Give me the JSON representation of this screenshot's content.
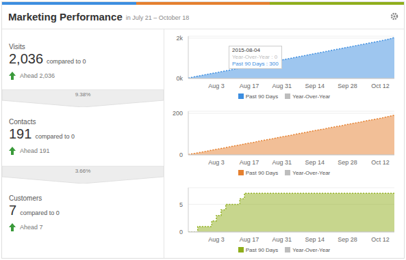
{
  "header": {
    "title": "Marketing Performance",
    "subtitle": "in July 21 – October 18"
  },
  "panels": [
    {
      "label": "Visits",
      "value": "2,036",
      "compared": "compared to 0",
      "ahead": "Ahead 2,036",
      "conversion": "9.38%"
    },
    {
      "label": "Contacts",
      "value": "191",
      "compared": "compared to 0",
      "ahead": "Ahead 191",
      "conversion": "3.66%"
    },
    {
      "label": "Customers",
      "value": "7",
      "compared": "compared to 0",
      "ahead": "Ahead 7"
    }
  ],
  "chart_data": [
    {
      "type": "area",
      "grid": true,
      "legend": "bottom",
      "categories": [
        null,
        null,
        null,
        null,
        null,
        null,
        "Aug 3",
        null,
        null,
        null,
        null,
        null,
        null,
        "Aug 17",
        null,
        null,
        null,
        null,
        null,
        null,
        "Aug 31",
        null,
        null,
        null,
        null,
        null,
        null,
        "Sep 14",
        null,
        null,
        null,
        null,
        null,
        null,
        "Sep 28",
        null,
        null,
        null,
        null,
        null,
        null,
        "Oct 12",
        null,
        null,
        null
      ],
      "ylim": [
        0,
        2100
      ],
      "yticks": [
        {
          "value": 0,
          "label": "0k"
        },
        {
          "value": 2000,
          "label": "2k"
        }
      ],
      "tooltip": {
        "title": "2015-08-04",
        "rows": [
          "Year-Over-Year : 0",
          "Past 90 Days : 300"
        ]
      },
      "series": [
        {
          "name": "Past 90 Days",
          "color": "#3d8ee0",
          "values": [
            25,
            70,
            115,
            160,
            205,
            250,
            290,
            335,
            380,
            425,
            470,
            515,
            560,
            605,
            650,
            695,
            740,
            785,
            830,
            875,
            920,
            965,
            1010,
            1055,
            1100,
            1145,
            1190,
            1235,
            1280,
            1325,
            1370,
            1415,
            1460,
            1505,
            1550,
            1595,
            1640,
            1685,
            1730,
            1775,
            1820,
            1865,
            1912,
            1962,
            2036
          ]
        },
        {
          "name": "Year-Over-Year",
          "color": "#bdbdbd",
          "type": "line",
          "values": [
            0,
            0,
            0,
            0,
            0,
            0,
            0,
            0,
            0,
            0,
            0,
            0,
            0,
            0,
            0,
            0,
            0,
            0,
            0,
            0,
            0,
            0,
            0,
            0,
            0,
            0,
            0,
            0,
            0,
            0,
            0,
            0,
            0,
            0,
            0,
            0,
            0,
            0,
            0,
            0,
            0,
            0,
            0,
            0,
            0
          ]
        }
      ]
    },
    {
      "type": "area",
      "grid": true,
      "legend": "bottom",
      "categories": [
        null,
        null,
        null,
        null,
        null,
        null,
        "Aug 3",
        null,
        null,
        null,
        null,
        null,
        null,
        "Aug 17",
        null,
        null,
        null,
        null,
        null,
        null,
        "Aug 31",
        null,
        null,
        null,
        null,
        null,
        null,
        "Sep 14",
        null,
        null,
        null,
        null,
        null,
        null,
        "Sep 28",
        null,
        null,
        null,
        null,
        null,
        null,
        "Oct 12",
        null,
        null,
        null
      ],
      "ylim": [
        0,
        210
      ],
      "yticks": [
        0,
        200
      ],
      "series": [
        {
          "name": "Past 90 Days",
          "color": "#e5802f",
          "values": [
            2,
            6,
            10,
            14,
            18,
            23,
            27,
            31,
            35,
            40,
            44,
            48,
            53,
            57,
            61,
            66,
            70,
            74,
            78,
            83,
            87,
            91,
            95,
            100,
            104,
            108,
            113,
            117,
            121,
            125,
            130,
            134,
            138,
            142,
            147,
            151,
            155,
            159,
            164,
            168,
            172,
            176,
            181,
            186,
            191
          ]
        },
        {
          "name": "Year-Over-Year",
          "color": "#bdbdbd",
          "type": "line",
          "values": [
            0,
            0,
            0,
            0,
            0,
            0,
            0,
            0,
            0,
            0,
            0,
            0,
            0,
            0,
            0,
            0,
            0,
            0,
            0,
            0,
            0,
            0,
            0,
            0,
            0,
            0,
            0,
            0,
            0,
            0,
            0,
            0,
            0,
            0,
            0,
            0,
            0,
            0,
            0,
            0,
            0,
            0,
            0,
            0,
            0
          ]
        }
      ]
    },
    {
      "type": "area",
      "grid": true,
      "legend": "bottom",
      "categories": [
        null,
        null,
        null,
        null,
        null,
        null,
        "Aug 3",
        null,
        null,
        null,
        null,
        null,
        null,
        "Aug 17",
        null,
        null,
        null,
        null,
        null,
        null,
        "Aug 31",
        null,
        null,
        null,
        null,
        null,
        null,
        "Sep 14",
        null,
        null,
        null,
        null,
        null,
        null,
        "Sep 28",
        null,
        null,
        null,
        null,
        null,
        null,
        "Oct 12",
        null,
        null,
        null
      ],
      "ylim": [
        0,
        8
      ],
      "yticks": [
        0,
        5
      ],
      "series": [
        {
          "name": "Past 90 Days",
          "color": "#8fae1b",
          "line_style": "step",
          "values": [
            0,
            0,
            1,
            1,
            1,
            2,
            3,
            4,
            5,
            5,
            5,
            6,
            7,
            7,
            7,
            7,
            7,
            7,
            7,
            7,
            7,
            7,
            7,
            7,
            7,
            7,
            7,
            7,
            7,
            7,
            7,
            7,
            7,
            7,
            7,
            7,
            7,
            7,
            7,
            7,
            7,
            7,
            7,
            7,
            7
          ]
        },
        {
          "name": "Year-Over-Year",
          "color": "#bdbdbd",
          "type": "line",
          "values": [
            0,
            0,
            0,
            0,
            0,
            0,
            0,
            0,
            0,
            0,
            0,
            0,
            0,
            0,
            0,
            0,
            0,
            0,
            0,
            0,
            0,
            0,
            0,
            0,
            0,
            0,
            0,
            0,
            0,
            0,
            0,
            0,
            0,
            0,
            0,
            0,
            0,
            0,
            0,
            0,
            0,
            0,
            0,
            0,
            0
          ]
        }
      ]
    }
  ]
}
